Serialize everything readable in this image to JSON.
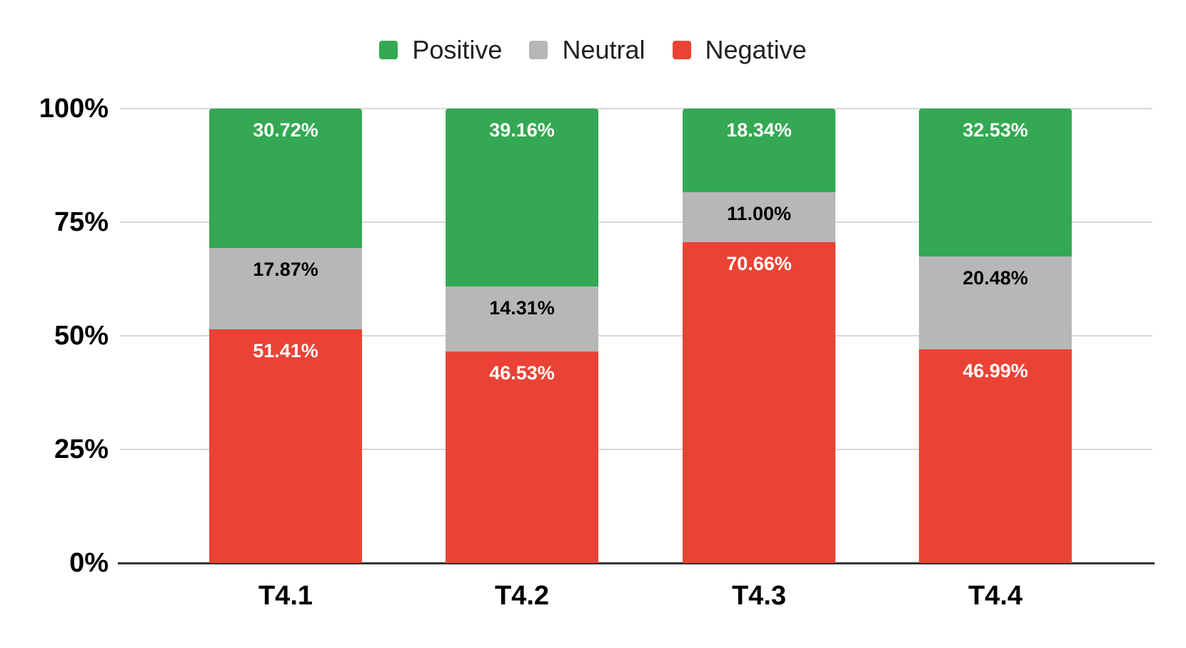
{
  "chart_data": {
    "type": "bar",
    "stacked": true,
    "orientation": "vertical",
    "title": "",
    "categories": [
      "T4.1",
      "T4.2",
      "T4.3",
      "T4.4"
    ],
    "series": [
      {
        "name": "Positive",
        "color": "#34a853",
        "label_text_color": "#ffffff",
        "values": [
          30.72,
          39.16,
          18.34,
          32.53
        ],
        "labels": [
          "30.72%",
          "39.16%",
          "18.34%",
          "32.53%"
        ]
      },
      {
        "name": "Neutral",
        "color": "#b7b7b7",
        "label_text_color": "#000000",
        "values": [
          17.87,
          14.31,
          11.0,
          20.48
        ],
        "labels": [
          "17.87%",
          "14.31%",
          "11.00%",
          "20.48%"
        ]
      },
      {
        "name": "Negative",
        "color": "#ea4335",
        "label_text_color": "#ffffff",
        "values": [
          51.41,
          46.53,
          70.66,
          46.99
        ],
        "labels": [
          "51.41%",
          "46.53%",
          "70.66%",
          "46.99%"
        ]
      }
    ],
    "y_axis": {
      "ticks": [
        "100%",
        "75%",
        "50%",
        "25%",
        "0%"
      ],
      "min": 0,
      "max": 100,
      "grid": true
    },
    "legend": {
      "position": "top",
      "items": [
        "Positive",
        "Neutral",
        "Negative"
      ]
    },
    "style_colors": {
      "grid_line": "#d9d9d9",
      "axis_line": "#333333",
      "axis_text": "#000000",
      "legend_text": "#212121",
      "background": "#ffffff"
    }
  }
}
